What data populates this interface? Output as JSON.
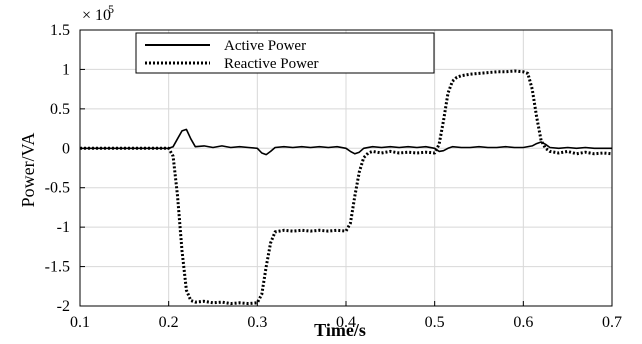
{
  "chart_data": {
    "type": "line",
    "xlabel": "Time/s",
    "ylabel": "Power/VA",
    "xlim": [
      0.1,
      0.7
    ],
    "ylim": [
      -2.0,
      1.5
    ],
    "y_multiplier": "× 10^5",
    "y_multiplier_base": "× 10",
    "y_multiplier_exp": "5",
    "xticks": [
      0.1,
      0.2,
      0.3,
      0.4,
      0.5,
      0.6,
      0.7
    ],
    "yticks": [
      -2,
      -1.5,
      -1,
      -0.5,
      0,
      0.5,
      1,
      1.5
    ],
    "grid": true,
    "legend_position": "top-left",
    "series": [
      {
        "name": "Active Power",
        "style": "solid",
        "color": "#000000",
        "x": [
          0.1,
          0.2,
          0.205,
          0.21,
          0.215,
          0.22,
          0.225,
          0.23,
          0.24,
          0.25,
          0.26,
          0.27,
          0.28,
          0.29,
          0.3,
          0.305,
          0.31,
          0.315,
          0.32,
          0.33,
          0.34,
          0.35,
          0.36,
          0.37,
          0.38,
          0.39,
          0.4,
          0.405,
          0.41,
          0.415,
          0.42,
          0.43,
          0.44,
          0.45,
          0.46,
          0.47,
          0.48,
          0.49,
          0.5,
          0.505,
          0.51,
          0.515,
          0.52,
          0.53,
          0.54,
          0.55,
          0.56,
          0.57,
          0.58,
          0.59,
          0.6,
          0.61,
          0.615,
          0.62,
          0.625,
          0.63,
          0.64,
          0.65,
          0.66,
          0.67,
          0.68,
          0.69,
          0.7
        ],
        "y": [
          0,
          0,
          0.02,
          0.12,
          0.22,
          0.24,
          0.12,
          0.02,
          0.03,
          0.01,
          0.03,
          0.01,
          0.02,
          0.01,
          0.0,
          -0.06,
          -0.08,
          -0.04,
          0.01,
          0.02,
          0.01,
          0.02,
          0.01,
          0.02,
          0.01,
          0.02,
          0.0,
          -0.04,
          -0.07,
          -0.05,
          0.0,
          0.02,
          0.01,
          0.02,
          0.01,
          0.02,
          0.01,
          0.02,
          0.0,
          -0.04,
          -0.03,
          0.0,
          0.02,
          0.01,
          0.01,
          0.02,
          0.01,
          0.01,
          0.02,
          0.01,
          0.01,
          0.03,
          0.06,
          0.08,
          0.05,
          0.01,
          0.0,
          0.01,
          0.0,
          0.01,
          0.0,
          0.0,
          0.0
        ]
      },
      {
        "name": "Reactive Power",
        "style": "dotted",
        "color": "#000000",
        "x": [
          0.1,
          0.2,
          0.205,
          0.21,
          0.215,
          0.22,
          0.225,
          0.23,
          0.24,
          0.25,
          0.26,
          0.27,
          0.28,
          0.29,
          0.3,
          0.305,
          0.31,
          0.315,
          0.32,
          0.33,
          0.34,
          0.35,
          0.36,
          0.37,
          0.38,
          0.39,
          0.4,
          0.405,
          0.41,
          0.415,
          0.42,
          0.425,
          0.43,
          0.44,
          0.45,
          0.46,
          0.47,
          0.48,
          0.49,
          0.5,
          0.505,
          0.51,
          0.515,
          0.52,
          0.525,
          0.53,
          0.54,
          0.55,
          0.56,
          0.57,
          0.58,
          0.59,
          0.6,
          0.605,
          0.61,
          0.615,
          0.62,
          0.625,
          0.63,
          0.64,
          0.65,
          0.66,
          0.67,
          0.68,
          0.69,
          0.7
        ],
        "y": [
          0,
          0,
          -0.1,
          -0.6,
          -1.3,
          -1.8,
          -1.93,
          -1.95,
          -1.94,
          -1.96,
          -1.95,
          -1.97,
          -1.96,
          -1.97,
          -1.96,
          -1.85,
          -1.5,
          -1.2,
          -1.06,
          -1.04,
          -1.05,
          -1.04,
          -1.05,
          -1.04,
          -1.05,
          -1.04,
          -1.05,
          -0.95,
          -0.6,
          -0.3,
          -0.12,
          -0.06,
          -0.04,
          -0.06,
          -0.04,
          -0.06,
          -0.05,
          -0.06,
          -0.05,
          -0.06,
          0.05,
          0.35,
          0.7,
          0.85,
          0.9,
          0.92,
          0.94,
          0.95,
          0.96,
          0.97,
          0.97,
          0.98,
          0.97,
          0.95,
          0.75,
          0.4,
          0.1,
          0.0,
          -0.04,
          -0.06,
          -0.04,
          -0.07,
          -0.05,
          -0.07,
          -0.06,
          -0.07
        ]
      }
    ]
  }
}
